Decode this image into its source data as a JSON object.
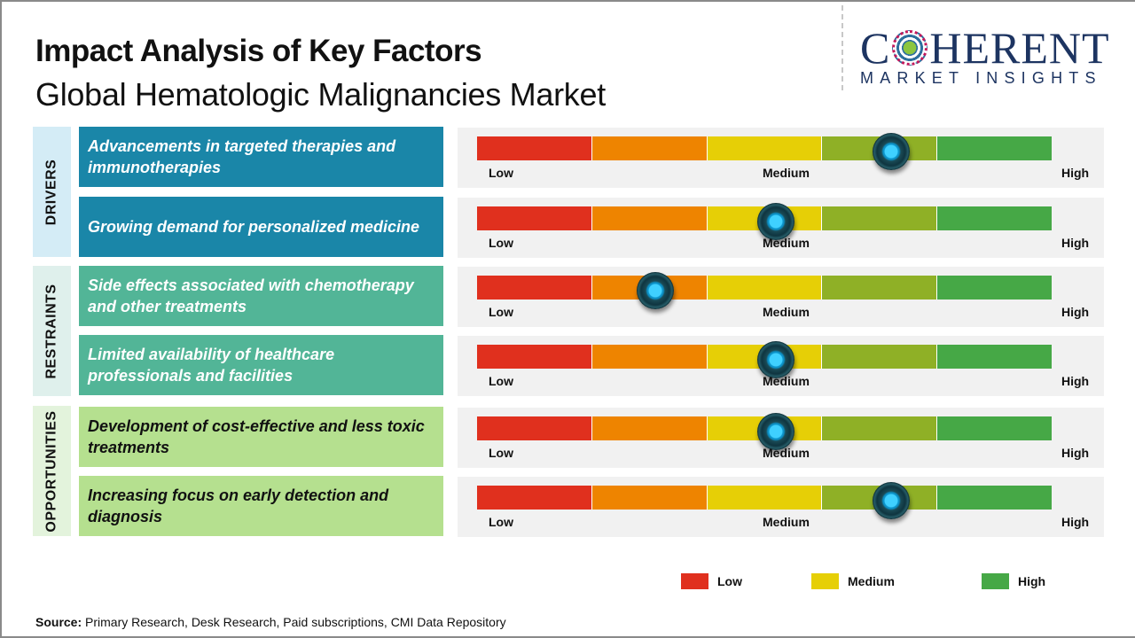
{
  "header": {
    "title": "Impact Analysis of Key Factors",
    "subtitle": "Global Hematologic Malignancies Market"
  },
  "logo": {
    "top": "C",
    "top_rest": "HERENT",
    "bottom": "MARKET INSIGHTS"
  },
  "categories": [
    {
      "label": "DRIVERS",
      "bg": "#d4ecf6",
      "factor_bg": "#1a86a8",
      "factor_text": "#ffffff"
    },
    {
      "label": "RESTRAINTS",
      "bg": "#dff0ec",
      "factor_bg": "#52b597",
      "factor_text": "#ffffff"
    },
    {
      "label": "OPPORTUNITIES",
      "bg": "#e3f3dc",
      "factor_bg": "#b5e08f",
      "factor_text": "#111111"
    }
  ],
  "factors": [
    {
      "text": "Advancements in targeted therapies and immunotherapies",
      "category": "DRIVERS"
    },
    {
      "text": "Growing demand for personalized medicine",
      "category": "DRIVERS"
    },
    {
      "text": "Side effects associated with chemotherapy and other treatments",
      "category": "RESTRAINTS"
    },
    {
      "text": "Limited availability of healthcare professionals and facilities",
      "category": "RESTRAINTS"
    },
    {
      "text": "Development of cost-effective and less toxic treatments",
      "category": "OPPORTUNITIES"
    },
    {
      "text": "Increasing focus on early detection and diagnosis",
      "category": "OPPORTUNITIES"
    }
  ],
  "gauge": {
    "labels": {
      "low": "Low",
      "medium": "Medium",
      "high": "High"
    },
    "segment_colors": [
      "#e0301e",
      "#ee8400",
      "#e6cf06",
      "#8fb026",
      "#46a846"
    ]
  },
  "legend": [
    {
      "label": "Low",
      "color": "#e0301e"
    },
    {
      "label": "Medium",
      "color": "#e6cf06"
    },
    {
      "label": "High",
      "color": "#46a846"
    }
  ],
  "source": {
    "label": "Source:",
    "text": " Primary Research, Desk Research, Paid subscriptions, CMI Data Repository"
  },
  "chart_data": {
    "type": "gauge",
    "title": "Impact Analysis of Key Factors — Global Hematologic Malignancies Market",
    "scale": [
      "Low",
      "Medium",
      "High"
    ],
    "segments": 5,
    "items": [
      {
        "category": "Drivers",
        "factor": "Advancements in targeted therapies and immunotherapies",
        "position": 0.72,
        "level": "Medium-High"
      },
      {
        "category": "Drivers",
        "factor": "Growing demand for personalized medicine",
        "position": 0.52,
        "level": "Medium"
      },
      {
        "category": "Restraints",
        "factor": "Side effects associated with chemotherapy and other treatments",
        "position": 0.31,
        "level": "Low-Medium"
      },
      {
        "category": "Restraints",
        "factor": "Limited availability of healthcare professionals and facilities",
        "position": 0.52,
        "level": "Medium"
      },
      {
        "category": "Opportunities",
        "factor": "Development of cost-effective and less toxic treatments",
        "position": 0.52,
        "level": "Medium"
      },
      {
        "category": "Opportunities",
        "factor": "Increasing focus on early detection and diagnosis",
        "position": 0.72,
        "level": "Medium-High"
      }
    ]
  }
}
